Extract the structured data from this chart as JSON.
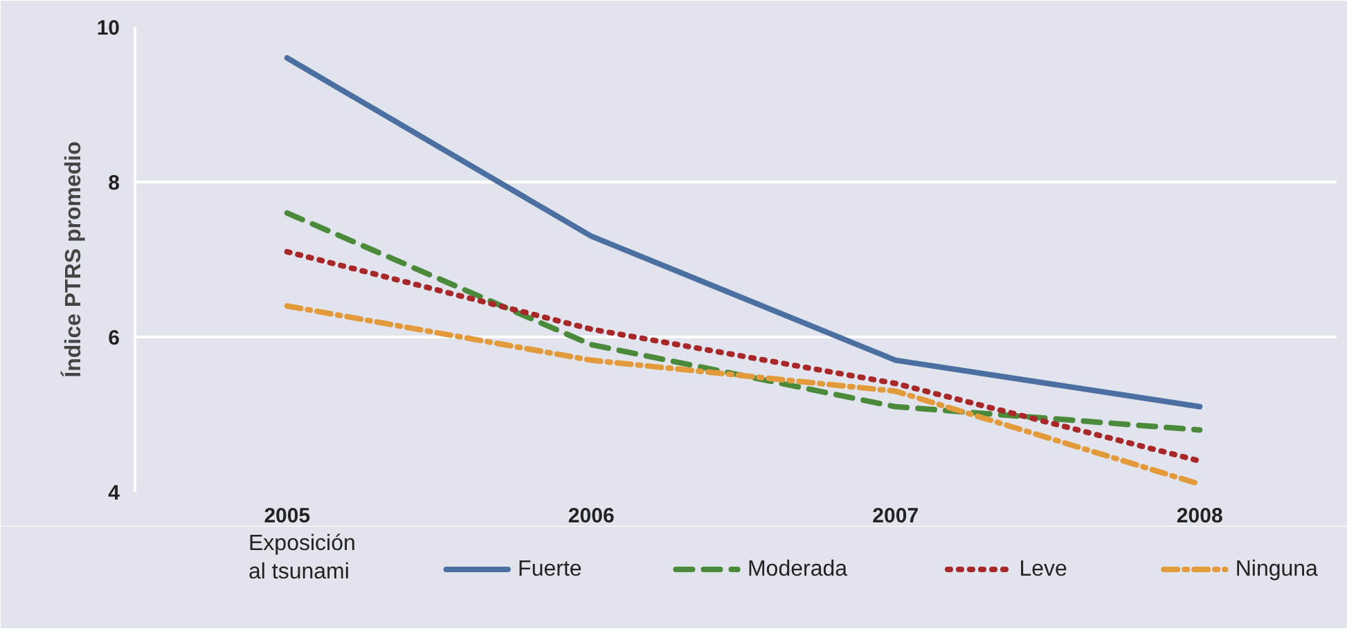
{
  "chart_data": {
    "type": "line",
    "ylabel": "Índice PTRS promedio",
    "legend_title": "Exposición\nal tsunami",
    "x": [
      2005,
      2006,
      2007,
      2008
    ],
    "xlim": [
      2004.5,
      2008.45
    ],
    "xticks": [
      2005,
      2006,
      2007,
      2008
    ],
    "ylim": [
      4,
      10
    ],
    "yticks": [
      4,
      6,
      8,
      10
    ],
    "grid": "y",
    "legend": "bottom",
    "series": [
      {
        "name": "Fuerte",
        "color": "#4a6fa0",
        "line_style": "solid",
        "values": [
          9.6,
          7.3,
          5.7,
          5.1
        ]
      },
      {
        "name": "Moderada",
        "color": "#4a8a3a",
        "line_style": "dashed",
        "values": [
          7.6,
          5.9,
          5.1,
          4.8
        ]
      },
      {
        "name": "Leve",
        "color": "#a8282a",
        "line_style": "dotted",
        "values": [
          7.1,
          6.1,
          5.4,
          4.4
        ]
      },
      {
        "name": "Ninguna",
        "color": "#e39a3a",
        "line_style": "dashdot",
        "values": [
          6.4,
          5.7,
          5.3,
          4.1
        ]
      }
    ]
  }
}
